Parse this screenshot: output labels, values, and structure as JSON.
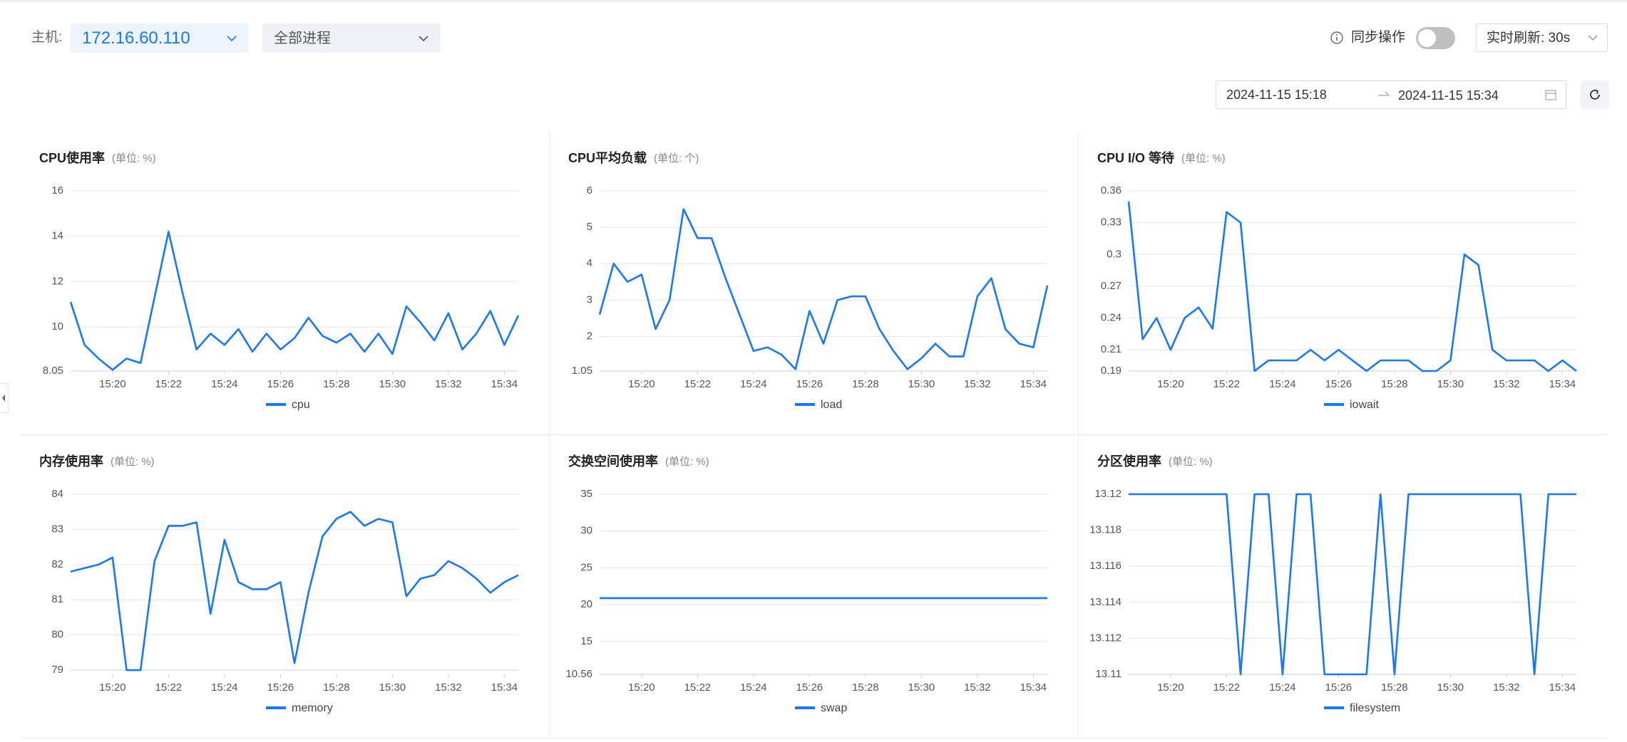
{
  "header": {
    "host_label": "主机:",
    "host": "172.16.60.110",
    "process": "全部进程",
    "sync_label": "同步操作",
    "refresh": "实时刷新: 30s",
    "date_start": "2024-11-15 15:18",
    "date_end": "2024-11-15 15:34"
  },
  "chart_data": [
    {
      "type": "line",
      "title": "CPU使用率",
      "subtitle": "(单位: %)",
      "grid": true,
      "x": [
        918.5,
        919,
        919.5,
        920,
        920.5,
        921,
        921.5,
        922,
        922.5,
        923,
        923.5,
        924,
        924.5,
        925,
        925.5,
        926,
        926.5,
        927,
        927.5,
        928,
        928.5,
        929,
        929.5,
        930,
        930.5,
        931,
        931.5,
        932,
        932.5,
        933,
        933.5,
        934,
        934.5
      ],
      "xlim": [
        918.5,
        934.5
      ],
      "xticks": [
        {
          "value": 920,
          "label": "15:20"
        },
        {
          "value": 922,
          "label": "15:22"
        },
        {
          "value": 924,
          "label": "15:24"
        },
        {
          "value": 926,
          "label": "15:26"
        },
        {
          "value": 928,
          "label": "15:28"
        },
        {
          "value": 930,
          "label": "15:30"
        },
        {
          "value": 932,
          "label": "15:32"
        },
        {
          "value": 934,
          "label": "15:34"
        }
      ],
      "ylim": [
        8.05,
        16
      ],
      "yticks": [
        8.05,
        10,
        12,
        14,
        16
      ],
      "series": [
        {
          "name": "cpu",
          "color": "#1677ff",
          "values": [
            11.1,
            9.2,
            8.6,
            8.1,
            8.6,
            8.4,
            11.3,
            14.2,
            11.5,
            9.0,
            9.7,
            9.2,
            9.9,
            8.9,
            9.7,
            9.0,
            9.5,
            10.4,
            9.6,
            9.3,
            9.7,
            8.9,
            9.7,
            8.8,
            10.9,
            10.2,
            9.4,
            10.6,
            9.0,
            9.7,
            10.7,
            9.2,
            10.5
          ]
        }
      ]
    },
    {
      "type": "line",
      "title": "CPU平均负载",
      "subtitle": "(单位: 个)",
      "grid": true,
      "x": [
        918.5,
        919,
        919.5,
        920,
        920.5,
        921,
        921.5,
        922,
        922.5,
        923,
        923.5,
        924,
        924.5,
        925,
        925.5,
        926,
        926.5,
        927,
        927.5,
        928,
        928.5,
        929,
        929.5,
        930,
        930.5,
        931,
        931.5,
        932,
        932.5,
        933,
        933.5,
        934,
        934.5
      ],
      "xlim": [
        918.5,
        934.5
      ],
      "xticks": [
        {
          "value": 920,
          "label": "15:20"
        },
        {
          "value": 922,
          "label": "15:22"
        },
        {
          "value": 924,
          "label": "15:24"
        },
        {
          "value": 926,
          "label": "15:26"
        },
        {
          "value": 928,
          "label": "15:28"
        },
        {
          "value": 930,
          "label": "15:30"
        },
        {
          "value": 932,
          "label": "15:32"
        },
        {
          "value": 934,
          "label": "15:34"
        }
      ],
      "ylim": [
        1.05,
        6
      ],
      "yticks": [
        1.05,
        2,
        3,
        4,
        5,
        6
      ],
      "series": [
        {
          "name": "load",
          "color": "#1677ff",
          "values": [
            2.6,
            4.0,
            3.5,
            3.7,
            2.2,
            3.0,
            5.5,
            4.7,
            4.7,
            3.6,
            2.6,
            1.6,
            1.7,
            1.5,
            1.1,
            2.7,
            1.8,
            3.0,
            3.1,
            3.1,
            2.2,
            1.6,
            1.1,
            1.4,
            1.8,
            1.45,
            1.45,
            3.1,
            3.6,
            2.2,
            1.8,
            1.7,
            3.4
          ]
        }
      ]
    },
    {
      "type": "line",
      "title": "CPU I/O 等待",
      "subtitle": "(单位: %)",
      "grid": true,
      "x": [
        918.5,
        919,
        919.5,
        920,
        920.5,
        921,
        921.5,
        922,
        922.5,
        923,
        923.5,
        924,
        924.5,
        925,
        925.5,
        926,
        926.5,
        927,
        927.5,
        928,
        928.5,
        929,
        929.5,
        930,
        930.5,
        931,
        931.5,
        932,
        932.5,
        933,
        933.5,
        934,
        934.5
      ],
      "xlim": [
        918.5,
        934.5
      ],
      "xticks": [
        {
          "value": 920,
          "label": "15:20"
        },
        {
          "value": 922,
          "label": "15:22"
        },
        {
          "value": 924,
          "label": "15:24"
        },
        {
          "value": 926,
          "label": "15:26"
        },
        {
          "value": 928,
          "label": "15:28"
        },
        {
          "value": 930,
          "label": "15:30"
        },
        {
          "value": 932,
          "label": "15:32"
        },
        {
          "value": 934,
          "label": "15:34"
        }
      ],
      "ylim": [
        0.19,
        0.36
      ],
      "yticks": [
        0.19,
        0.21,
        0.24,
        0.27,
        0.3,
        0.33,
        0.36
      ],
      "series": [
        {
          "name": "iowait",
          "color": "#1677ff",
          "values": [
            0.35,
            0.22,
            0.24,
            0.21,
            0.24,
            0.25,
            0.23,
            0.34,
            0.33,
            0.19,
            0.2,
            0.2,
            0.2,
            0.21,
            0.2,
            0.21,
            0.2,
            0.19,
            0.2,
            0.2,
            0.2,
            0.19,
            0.19,
            0.2,
            0.3,
            0.29,
            0.21,
            0.2,
            0.2,
            0.2,
            0.19,
            0.2,
            0.19
          ]
        }
      ]
    },
    {
      "type": "line",
      "title": "内存使用率",
      "subtitle": "(单位: %)",
      "grid": true,
      "x": [
        918.5,
        919,
        919.5,
        920,
        920.5,
        921,
        921.5,
        922,
        922.5,
        923,
        923.5,
        924,
        924.5,
        925,
        925.5,
        926,
        926.5,
        927,
        927.5,
        928,
        928.5,
        929,
        929.5,
        930,
        930.5,
        931,
        931.5,
        932,
        932.5,
        933,
        933.5,
        934,
        934.5
      ],
      "xlim": [
        918.5,
        934.5
      ],
      "xticks": [
        {
          "value": 920,
          "label": "15:20"
        },
        {
          "value": 922,
          "label": "15:22"
        },
        {
          "value": 924,
          "label": "15:24"
        },
        {
          "value": 926,
          "label": "15:26"
        },
        {
          "value": 928,
          "label": "15:28"
        },
        {
          "value": 930,
          "label": "15:30"
        },
        {
          "value": 932,
          "label": "15:32"
        },
        {
          "value": 934,
          "label": "15:34"
        }
      ],
      "ylim": [
        78.88,
        84
      ],
      "yticks": [
        79,
        80,
        81,
        82,
        83,
        84
      ],
      "series": [
        {
          "name": "memory",
          "color": "#1677ff",
          "values": [
            81.8,
            81.9,
            82.0,
            82.2,
            79.0,
            79.0,
            82.1,
            83.1,
            83.1,
            83.2,
            80.6,
            82.7,
            81.5,
            81.3,
            81.3,
            81.5,
            79.2,
            81.2,
            82.8,
            83.3,
            83.5,
            83.1,
            83.3,
            83.2,
            81.1,
            81.6,
            81.7,
            82.1,
            81.9,
            81.6,
            81.2,
            81.5,
            81.7
          ]
        }
      ]
    },
    {
      "type": "line",
      "title": "交换空间使用率",
      "subtitle": "(单位: %)",
      "grid": true,
      "x": [
        918.5,
        919,
        919.5,
        920,
        920.5,
        921,
        921.5,
        922,
        922.5,
        923,
        923.5,
        924,
        924.5,
        925,
        925.5,
        926,
        926.5,
        927,
        927.5,
        928,
        928.5,
        929,
        929.5,
        930,
        930.5,
        931,
        931.5,
        932,
        932.5,
        933,
        933.5,
        934,
        934.5
      ],
      "xlim": [
        918.5,
        934.5
      ],
      "xticks": [
        {
          "value": 920,
          "label": "15:20"
        },
        {
          "value": 922,
          "label": "15:22"
        },
        {
          "value": 924,
          "label": "15:24"
        },
        {
          "value": 926,
          "label": "15:26"
        },
        {
          "value": 928,
          "label": "15:28"
        },
        {
          "value": 930,
          "label": "15:30"
        },
        {
          "value": 932,
          "label": "15:32"
        },
        {
          "value": 934,
          "label": "15:34"
        }
      ],
      "ylim": [
        10.56,
        35
      ],
      "yticks": [
        10.56,
        15,
        20,
        25,
        30,
        35
      ],
      "series": [
        {
          "name": "swap",
          "color": "#1677ff",
          "values": [
            20.9,
            20.9,
            20.9,
            20.9,
            20.9,
            20.9,
            20.9,
            20.9,
            20.9,
            20.9,
            20.9,
            20.9,
            20.9,
            20.9,
            20.9,
            20.9,
            20.9,
            20.9,
            20.9,
            20.9,
            20.9,
            20.9,
            20.9,
            20.9,
            20.9,
            20.9,
            20.9,
            20.9,
            20.9,
            20.9,
            20.9,
            20.9,
            20.9
          ]
        }
      ]
    },
    {
      "type": "line",
      "title": "分区使用率",
      "subtitle": "(单位: %)",
      "grid": true,
      "x": [
        918.5,
        919,
        919.5,
        920,
        920.5,
        921,
        921.5,
        922,
        922.5,
        923,
        923.5,
        924,
        924.5,
        925,
        925.5,
        926,
        926.5,
        927,
        927.5,
        928,
        928.5,
        929,
        929.5,
        930,
        930.5,
        931,
        931.5,
        932,
        932.5,
        933,
        933.5,
        934,
        934.5
      ],
      "xlim": [
        918.5,
        934.5
      ],
      "xticks": [
        {
          "value": 920,
          "label": "15:20"
        },
        {
          "value": 922,
          "label": "15:22"
        },
        {
          "value": 924,
          "label": "15:24"
        },
        {
          "value": 926,
          "label": "15:26"
        },
        {
          "value": 928,
          "label": "15:28"
        },
        {
          "value": 930,
          "label": "15:30"
        },
        {
          "value": 932,
          "label": "15:32"
        },
        {
          "value": 934,
          "label": "15:34"
        }
      ],
      "ylim": [
        13.11,
        13.12
      ],
      "yticks": [
        13.11,
        13.112,
        13.114,
        13.116,
        13.118,
        13.12
      ],
      "series": [
        {
          "name": "filesystem",
          "color": "#1677ff",
          "values": [
            13.12,
            13.12,
            13.12,
            13.12,
            13.12,
            13.12,
            13.12,
            13.12,
            13.11,
            13.12,
            13.12,
            13.11,
            13.12,
            13.12,
            13.11,
            13.11,
            13.11,
            13.11,
            13.12,
            13.11,
            13.12,
            13.12,
            13.12,
            13.12,
            13.12,
            13.12,
            13.12,
            13.12,
            13.12,
            13.11,
            13.12,
            13.12,
            13.12
          ]
        }
      ]
    }
  ]
}
